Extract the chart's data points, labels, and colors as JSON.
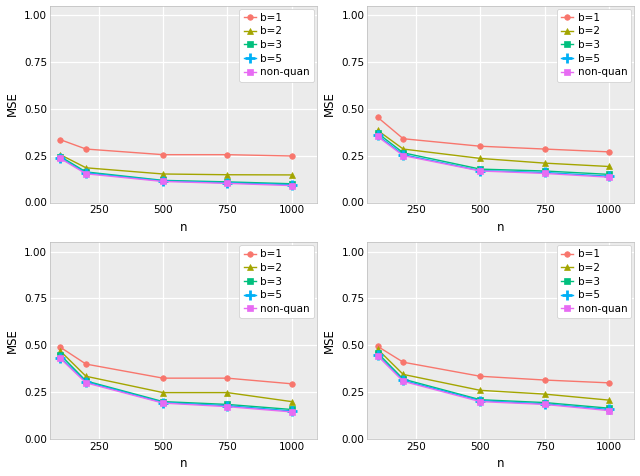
{
  "x": [
    100,
    200,
    500,
    750,
    1000
  ],
  "plots": [
    {
      "b1": [
        0.335,
        0.285,
        0.255,
        0.255,
        0.248
      ],
      "b2": [
        0.255,
        0.185,
        0.152,
        0.148,
        0.147
      ],
      "b3": [
        0.245,
        0.163,
        0.118,
        0.11,
        0.1
      ],
      "b5": [
        0.238,
        0.158,
        0.115,
        0.105,
        0.095
      ],
      "nonquan": [
        0.235,
        0.153,
        0.112,
        0.102,
        0.09
      ]
    },
    {
      "b1": [
        0.455,
        0.34,
        0.3,
        0.285,
        0.27
      ],
      "b2": [
        0.385,
        0.285,
        0.235,
        0.21,
        0.192
      ],
      "b3": [
        0.37,
        0.265,
        0.178,
        0.168,
        0.15
      ],
      "b5": [
        0.358,
        0.255,
        0.17,
        0.16,
        0.14
      ],
      "nonquan": [
        0.352,
        0.25,
        0.168,
        0.155,
        0.135
      ]
    },
    {
      "b1": [
        0.49,
        0.4,
        0.325,
        0.325,
        0.295
      ],
      "b2": [
        0.47,
        0.335,
        0.248,
        0.248,
        0.2
      ],
      "b3": [
        0.45,
        0.31,
        0.2,
        0.185,
        0.158
      ],
      "b5": [
        0.435,
        0.305,
        0.195,
        0.178,
        0.15
      ],
      "nonquan": [
        0.43,
        0.3,
        0.192,
        0.173,
        0.145
      ]
    },
    {
      "b1": [
        0.495,
        0.41,
        0.335,
        0.315,
        0.3
      ],
      "b2": [
        0.48,
        0.345,
        0.26,
        0.24,
        0.208
      ],
      "b3": [
        0.46,
        0.32,
        0.21,
        0.195,
        0.165
      ],
      "b5": [
        0.448,
        0.313,
        0.205,
        0.188,
        0.158
      ],
      "nonquan": [
        0.445,
        0.308,
        0.2,
        0.185,
        0.152
      ]
    }
  ],
  "colors": {
    "b1": "#F8766D",
    "b2": "#A3A500",
    "b3": "#00BF7D",
    "b5": "#00B0F6",
    "nonquan": "#E76BF3"
  },
  "markers": {
    "b1": "o",
    "b2": "^",
    "b3": "s",
    "b5": "+",
    "nonquan": "s"
  },
  "marker_sizes": {
    "b1": 4,
    "b2": 5,
    "b3": 4,
    "b5": 7,
    "nonquan": 4
  },
  "labels": {
    "b1": "b=1",
    "b2": "b=2",
    "b3": "b=3",
    "b5": "b=5",
    "nonquan": "non-quan"
  },
  "ylim": [
    0.0,
    1.05
  ],
  "yticks": [
    0.0,
    0.25,
    0.5,
    0.75,
    1.0
  ],
  "xticks": [
    250,
    500,
    750,
    1000
  ],
  "xlabel": "n",
  "ylabel": "MSE",
  "panel_bg": "#EBEBEB",
  "fig_bg": "#FFFFFF",
  "grid_color": "#FFFFFF",
  "line_width": 1.0,
  "legend_fontsize": 7.5,
  "axis_fontsize": 8.5,
  "tick_fontsize": 7.5
}
